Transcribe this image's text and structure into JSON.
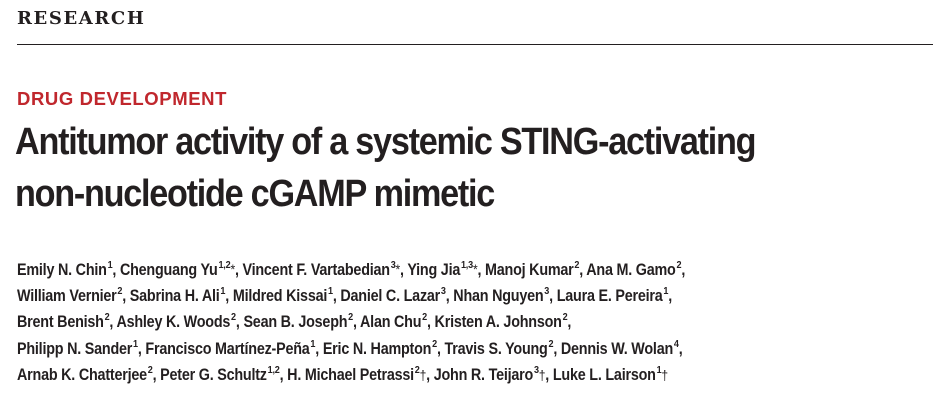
{
  "journal_tag": "RESEARCH",
  "section_label": "DRUG DEVELOPMENT",
  "title_lines": [
    "Antitumor activity of a systemic STING-activating",
    "non-nucleotide cGAMP mimetic"
  ],
  "author_lines": [
    [
      {
        "name": "Emily N. Chin",
        "aff": "1",
        "mark": ""
      },
      {
        "name": "Chenguang Yu",
        "aff": "1,2",
        "mark": "*"
      },
      {
        "name": "Vincent F. Vartabedian",
        "aff": "3",
        "mark": "*"
      },
      {
        "name": "Ying Jia",
        "aff": "1,3",
        "mark": "*"
      },
      {
        "name": "Manoj Kumar",
        "aff": "2",
        "mark": ""
      },
      {
        "name": "Ana M. Gamo",
        "aff": "2",
        "mark": ""
      }
    ],
    [
      {
        "name": "William Vernier",
        "aff": "2",
        "mark": ""
      },
      {
        "name": "Sabrina H. Ali",
        "aff": "1",
        "mark": ""
      },
      {
        "name": "Mildred Kissai",
        "aff": "1",
        "mark": ""
      },
      {
        "name": "Daniel C. Lazar",
        "aff": "3",
        "mark": ""
      },
      {
        "name": "Nhan Nguyen",
        "aff": "3",
        "mark": ""
      },
      {
        "name": "Laura E. Pereira",
        "aff": "1",
        "mark": ""
      }
    ],
    [
      {
        "name": "Brent Benish",
        "aff": "2",
        "mark": ""
      },
      {
        "name": "Ashley K. Woods",
        "aff": "2",
        "mark": ""
      },
      {
        "name": "Sean B. Joseph",
        "aff": "2",
        "mark": ""
      },
      {
        "name": "Alan Chu",
        "aff": "2",
        "mark": ""
      },
      {
        "name": "Kristen A. Johnson",
        "aff": "2",
        "mark": ""
      }
    ],
    [
      {
        "name": "Philipp N. Sander",
        "aff": "1",
        "mark": ""
      },
      {
        "name": "Francisco Martínez-Peña",
        "aff": "1",
        "mark": ""
      },
      {
        "name": "Eric N. Hampton",
        "aff": "2",
        "mark": ""
      },
      {
        "name": "Travis S. Young",
        "aff": "2",
        "mark": ""
      },
      {
        "name": "Dennis W. Wolan",
        "aff": "4",
        "mark": ""
      }
    ],
    [
      {
        "name": "Arnab K. Chatterjee",
        "aff": "2",
        "mark": ""
      },
      {
        "name": "Peter G. Schultz",
        "aff": "1,2",
        "mark": ""
      },
      {
        "name": "H. Michael Petrassi",
        "aff": "2",
        "mark": "†"
      },
      {
        "name": "John R. Teijaro",
        "aff": "3",
        "mark": "†"
      },
      {
        "name": "Luke L. Lairson",
        "aff": "1",
        "mark": "†"
      }
    ]
  ],
  "colors": {
    "accent": "#c0272d",
    "text": "#231f20"
  }
}
